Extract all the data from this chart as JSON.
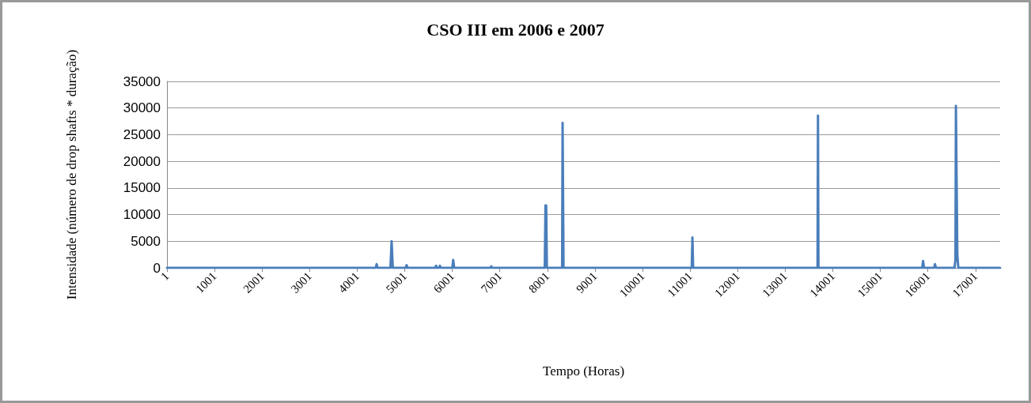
{
  "chart_data": {
    "type": "line",
    "title": "CSO III em 2006 e 2007",
    "xlabel": "Tempo (Horas)",
    "ylabel": "Intensidade (número de drop shafts * duração)",
    "series": [
      {
        "color": "#4a7ebb",
        "x": [
          1,
          4390,
          4410,
          4430,
          4700,
          4725,
          4750,
          5020,
          5040,
          5060,
          5640,
          5660,
          5680,
          5720,
          5740,
          5760,
          6000,
          6020,
          6040,
          6800,
          6820,
          6840,
          7945,
          7960,
          7975,
          7990,
          8310,
          8320,
          8330,
          8340,
          11035,
          11050,
          11065,
          13680,
          13690,
          13700,
          15880,
          15900,
          15920,
          16130,
          16150,
          16170,
          16560,
          16580,
          16590,
          16600,
          16620,
          16640,
          17520
        ],
        "values": [
          0,
          0,
          700,
          0,
          0,
          5000,
          0,
          0,
          500,
          0,
          0,
          400,
          0,
          0,
          400,
          0,
          0,
          1500,
          0,
          0,
          300,
          0,
          0,
          11700,
          11700,
          0,
          0,
          27200,
          27200,
          0,
          0,
          5700,
          0,
          0,
          28600,
          0,
          0,
          1300,
          0,
          0,
          700,
          0,
          0,
          1500,
          30400,
          30400,
          2500,
          0,
          0
        ]
      }
    ],
    "xlim": [
      1,
      17520
    ],
    "xticks": [
      1,
      1001,
      2001,
      3001,
      4001,
      5001,
      6001,
      7001,
      8001,
      9001,
      10001,
      11001,
      12001,
      13001,
      14001,
      15001,
      16001,
      17001
    ],
    "ylim": [
      0,
      35000
    ],
    "yticks": [
      0,
      5000,
      10000,
      15000,
      20000,
      25000,
      30000,
      35000
    ],
    "grid": "y",
    "marker": "none",
    "line_style": "solid"
  }
}
